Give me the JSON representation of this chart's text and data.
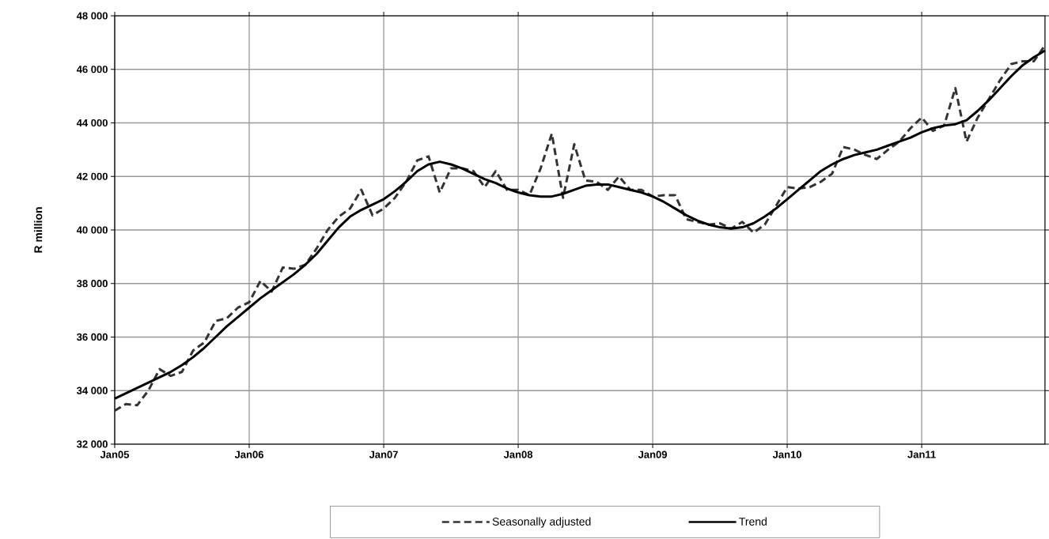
{
  "chart_data": {
    "type": "line",
    "ylabel": "R million",
    "x": [
      "2005-01",
      "2005-02",
      "2005-03",
      "2005-04",
      "2005-05",
      "2005-06",
      "2005-07",
      "2005-08",
      "2005-09",
      "2005-10",
      "2005-11",
      "2005-12",
      "2006-01",
      "2006-02",
      "2006-03",
      "2006-04",
      "2006-05",
      "2006-06",
      "2006-07",
      "2006-08",
      "2006-09",
      "2006-10",
      "2006-11",
      "2006-12",
      "2007-01",
      "2007-02",
      "2007-03",
      "2007-04",
      "2007-05",
      "2007-06",
      "2007-07",
      "2007-08",
      "2007-09",
      "2007-10",
      "2007-11",
      "2007-12",
      "2008-01",
      "2008-02",
      "2008-03",
      "2008-04",
      "2008-05",
      "2008-06",
      "2008-07",
      "2008-08",
      "2008-09",
      "2008-10",
      "2008-11",
      "2008-12",
      "2009-01",
      "2009-02",
      "2009-03",
      "2009-04",
      "2009-05",
      "2009-06",
      "2009-07",
      "2009-08",
      "2009-09",
      "2009-10",
      "2009-11",
      "2009-12",
      "2010-01",
      "2010-02",
      "2010-03",
      "2010-04",
      "2010-05",
      "2010-06",
      "2010-07",
      "2010-08",
      "2010-09",
      "2010-10",
      "2010-11",
      "2010-12",
      "2011-01",
      "2011-02",
      "2011-03",
      "2011-04",
      "2011-05",
      "2011-06",
      "2011-07",
      "2011-08",
      "2011-09",
      "2011-10",
      "2011-11",
      "2011-12"
    ],
    "series": [
      {
        "name": "Seasonally adjusted",
        "color": "#333333",
        "line_style": "dashed",
        "values": [
          33250,
          33500,
          33450,
          34000,
          34800,
          34550,
          34700,
          35500,
          35800,
          36600,
          36700,
          37100,
          37300,
          38100,
          37700,
          38600,
          38550,
          38700,
          39300,
          40000,
          40500,
          40800,
          41500,
          40550,
          40800,
          41200,
          41800,
          42600,
          42750,
          41400,
          42300,
          42300,
          42200,
          41600,
          42200,
          41500,
          41500,
          41300,
          42300,
          43600,
          41200,
          43200,
          41850,
          41800,
          41500,
          42000,
          41500,
          41500,
          41250,
          41300,
          41300,
          40400,
          40300,
          40200,
          40250,
          40050,
          40300,
          39900,
          40200,
          40900,
          41600,
          41550,
          41600,
          41800,
          42100,
          43100,
          43000,
          42800,
          42650,
          43000,
          43300,
          43800,
          44200,
          43700,
          43900,
          45300,
          43300,
          44200,
          44900,
          45600,
          46200,
          46300,
          46300,
          46900
        ]
      },
      {
        "name": "Trend",
        "color": "#000000",
        "line_style": "solid",
        "values": [
          33700,
          33900,
          34100,
          34300,
          34500,
          34700,
          34950,
          35250,
          35600,
          36000,
          36400,
          36750,
          37100,
          37450,
          37750,
          38050,
          38350,
          38700,
          39100,
          39600,
          40100,
          40500,
          40750,
          40950,
          41150,
          41450,
          41800,
          42200,
          42450,
          42550,
          42450,
          42300,
          42100,
          41900,
          41750,
          41550,
          41400,
          41300,
          41250,
          41250,
          41350,
          41500,
          41650,
          41700,
          41700,
          41600,
          41500,
          41400,
          41250,
          41050,
          40800,
          40550,
          40350,
          40200,
          40100,
          40050,
          40100,
          40250,
          40500,
          40800,
          41150,
          41500,
          41850,
          42200,
          42450,
          42650,
          42800,
          42900,
          43000,
          43150,
          43300,
          43450,
          43650,
          43800,
          43900,
          43950,
          44100,
          44450,
          44850,
          45300,
          45750,
          46150,
          46450,
          46700
        ]
      }
    ],
    "xlim": [
      "2005-01",
      "2011-12"
    ],
    "xticks": [
      {
        "value": "2005-01",
        "label": "Jan05"
      },
      {
        "value": "2006-01",
        "label": "Jan06"
      },
      {
        "value": "2007-01",
        "label": "Jan07"
      },
      {
        "value": "2008-01",
        "label": "Jan08"
      },
      {
        "value": "2009-01",
        "label": "Jan09"
      },
      {
        "value": "2010-01",
        "label": "Jan10"
      },
      {
        "value": "2011-01",
        "label": "Jan11"
      }
    ],
    "ylim": [
      32000,
      48000
    ],
    "yticks": [
      {
        "value": 32000,
        "label": "32 000"
      },
      {
        "value": 34000,
        "label": "34 000"
      },
      {
        "value": 36000,
        "label": "36 000"
      },
      {
        "value": 38000,
        "label": "38 000"
      },
      {
        "value": 40000,
        "label": "40 000"
      },
      {
        "value": 42000,
        "label": "42 000"
      },
      {
        "value": 44000,
        "label": "44 000"
      },
      {
        "value": 46000,
        "label": "46 000"
      },
      {
        "value": 48000,
        "label": "48 000"
      }
    ],
    "grid": true,
    "legend": "bottom"
  }
}
